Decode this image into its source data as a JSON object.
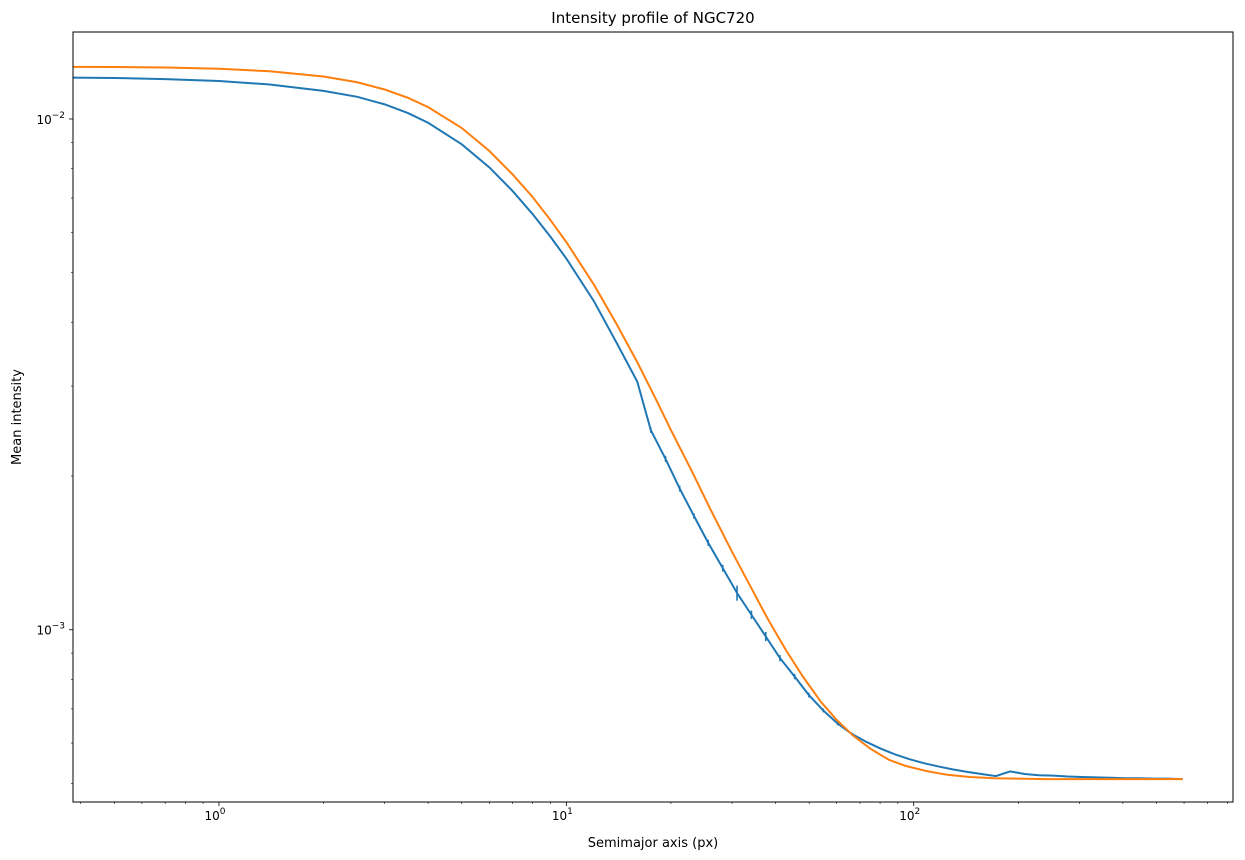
{
  "chart_data": {
    "type": "line",
    "title": "Intensity profile of NGC720",
    "xlabel": "Semimajor axis (px)",
    "ylabel": "Mean intensity",
    "xscale": "log",
    "yscale": "log",
    "xlim": [
      0.38,
      830
    ],
    "ylim": [
      0.00046,
      0.0148
    ],
    "x_major_ticks": [
      {
        "value": 1,
        "base": "10",
        "exp": "0"
      },
      {
        "value": 10,
        "base": "10",
        "exp": "1"
      },
      {
        "value": 100,
        "base": "10",
        "exp": "2"
      }
    ],
    "y_major_ticks": [
      {
        "value": 0.01,
        "base": "10",
        "exp": "−2"
      },
      {
        "value": 0.001,
        "base": "10",
        "exp": "−3"
      }
    ],
    "grid": false,
    "legend": "none",
    "series": [
      {
        "color": "#1f77b4",
        "errorbars": true,
        "x": [
          0.38,
          0.5,
          0.7,
          1.0,
          1.4,
          2.0,
          2.5,
          3.0,
          3.5,
          4.0,
          5.0,
          6.0,
          7.0,
          8.0,
          9.0,
          10.0,
          12.0,
          14.0,
          16.0,
          17.5,
          19.3,
          21.2,
          23.3,
          25.6,
          28.2,
          31.0,
          34.1,
          37.5,
          41.2,
          45.4,
          49.9,
          54.9,
          60.4,
          66.4,
          73.1,
          80.4,
          88.4,
          97.2,
          107.0,
          117.7,
          129.4,
          142.4,
          156.6,
          172.3,
          189.5,
          208.4,
          229.3,
          252.2,
          277.4,
          305.2,
          335.7,
          369.3,
          406.2,
          446.8,
          491.5,
          540.6,
          594.7
        ],
        "y": [
          0.01205,
          0.01203,
          0.01197,
          0.01187,
          0.01168,
          0.01135,
          0.01105,
          0.01068,
          0.01027,
          0.00983,
          0.00892,
          0.00804,
          0.00723,
          0.00651,
          0.00588,
          0.00533,
          0.0044,
          0.00363,
          0.00306,
          0.00246,
          0.00216,
          0.00189,
          0.00167,
          0.00148,
          0.00132,
          0.00118,
          0.00107,
          0.00097,
          0.00088,
          0.00081,
          0.000745,
          0.000695,
          0.000655,
          0.000625,
          0.000603,
          0.000585,
          0.00057,
          0.000558,
          0.000548,
          0.00054,
          0.000533,
          0.000527,
          0.000522,
          0.000517,
          0.000528,
          0.000522,
          0.000519,
          0.000518,
          0.000516,
          0.000515,
          0.000514,
          0.000513,
          0.000512,
          0.000512,
          0.000511,
          0.000511,
          0.00051
        ],
        "yerr": [
          0.0,
          0.0,
          0.0,
          0.0,
          0.0,
          0.0,
          0.0,
          0.0,
          0.0,
          0.0,
          0.0,
          0.0,
          0.0,
          0.0,
          0.0,
          0.0,
          0.0,
          0.0,
          0.0,
          3e-05,
          3e-05,
          2.5e-05,
          2e-05,
          2e-05,
          2e-05,
          4e-05,
          2e-05,
          2e-05,
          1.2e-05,
          1e-05,
          8e-06,
          6e-06,
          5e-06,
          4e-06,
          0.0,
          0.0,
          0.0,
          0.0,
          0.0,
          0.0,
          0.0,
          0.0,
          0.0,
          0.0,
          0.0,
          0.0,
          0.0,
          0.0,
          0.0,
          0.0,
          0.0,
          0.0,
          0.0,
          0.0,
          0.0,
          0.0,
          0.0
        ]
      },
      {
        "color": "#ff7f0e",
        "errorbars": false,
        "x": [
          0.38,
          0.5,
          0.7,
          1.0,
          1.4,
          2.0,
          2.5,
          3.0,
          3.5,
          4.0,
          5.0,
          6.0,
          7.0,
          8.0,
          9.0,
          10.0,
          12.0,
          14.0,
          16.0,
          18.0,
          20.0,
          23.0,
          26.0,
          30.0,
          34.0,
          38.0,
          43.0,
          48.0,
          54.0,
          60.0,
          67.0,
          75.0,
          85.0,
          95.0,
          110.0,
          125.0,
          145.0,
          170.0,
          200.0,
          240.0,
          300.0,
          380.0,
          480.0,
          594.7
        ],
        "y": [
          0.01265,
          0.01264,
          0.01261,
          0.01254,
          0.0124,
          0.01211,
          0.0118,
          0.01142,
          0.011,
          0.01055,
          0.0096,
          0.00866,
          0.00779,
          0.00703,
          0.00634,
          0.00574,
          0.00474,
          0.00395,
          0.00334,
          0.00285,
          0.00246,
          0.00204,
          0.00172,
          0.00142,
          0.00121,
          0.00105,
          0.000909,
          0.000809,
          0.000723,
          0.000666,
          0.00062,
          0.000585,
          0.000556,
          0.000541,
          0.000528,
          0.00052,
          0.000515,
          0.000512,
          0.000511,
          0.00051,
          0.00051,
          0.00051,
          0.00051,
          0.00051
        ]
      }
    ]
  }
}
